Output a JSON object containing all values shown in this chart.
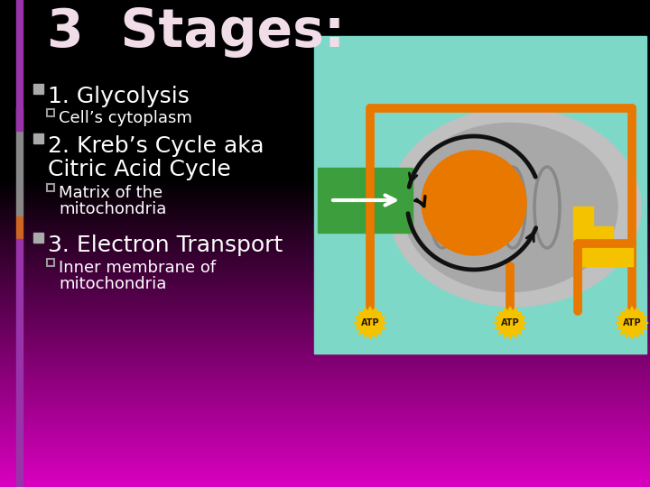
{
  "title": "3  Stages:",
  "title_color": "#f0dde8",
  "title_fontsize": 42,
  "bullet1": "1. Glycolysis",
  "sub1": "Cell’s cytoplasm",
  "bullet2_line1": "2. Kreb’s Cycle aka",
  "bullet2_line2": "Citric Acid Cycle",
  "sub2_line1": "Matrix of the",
  "sub2_line2": "mitochondria",
  "bullet3": "3. Electron Transport",
  "sub3_line1": "Inner membrane of",
  "sub3_line2": "mitochondria",
  "text_color": "#ffffff",
  "diagram_bg": "#7ed8c8",
  "mito_outer_color": "#b8b8b8",
  "mito_inner_color": "#a0a0a0",
  "crista_color": "#888888",
  "orange_color": "#e87800",
  "green_box_color": "#3d9e3d",
  "yellow_color": "#f5c200",
  "atp_color": "#f5c200",
  "pipe_color": "#e87800",
  "pipe_lw": 7,
  "bullet_sq_color": "#aaaaaa",
  "sub_sq_color": "#999999",
  "left_bar_gray": "#888888",
  "left_bar_orange": "#cc6622",
  "left_bar_purple": "#9933aa"
}
